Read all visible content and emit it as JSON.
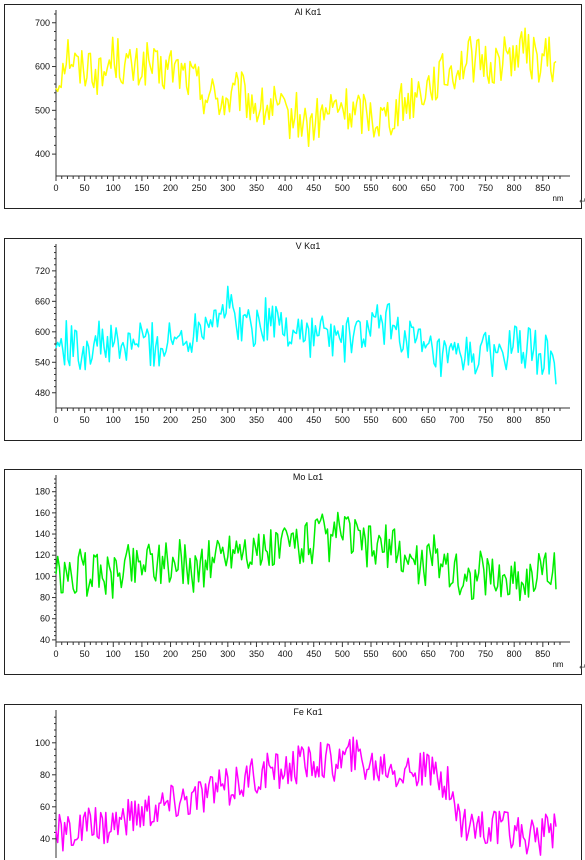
{
  "chart_data": [
    {
      "type": "line",
      "title": "Al Kα1",
      "xlabel": "nm",
      "color": "#ffff00",
      "xlim": [
        0,
        880
      ],
      "ylim": [
        350,
        720
      ],
      "xticks": [
        0,
        50,
        100,
        150,
        200,
        250,
        300,
        350,
        400,
        450,
        500,
        550,
        600,
        650,
        700,
        750,
        800,
        850
      ],
      "yticks": [
        400,
        500,
        600,
        700
      ],
      "x": [
        0,
        20,
        40,
        60,
        80,
        100,
        120,
        140,
        160,
        180,
        200,
        220,
        240,
        260,
        280,
        300,
        320,
        340,
        360,
        380,
        400,
        420,
        440,
        460,
        480,
        500,
        520,
        540,
        560,
        580,
        600,
        620,
        640,
        660,
        680,
        700,
        720,
        740,
        760,
        780,
        800,
        820,
        840,
        860,
        875
      ],
      "values": [
        560,
        640,
        590,
        610,
        570,
        630,
        600,
        590,
        610,
        580,
        600,
        585,
        570,
        540,
        530,
        520,
        540,
        520,
        500,
        510,
        480,
        490,
        460,
        480,
        500,
        510,
        490,
        500,
        480,
        490,
        510,
        530,
        550,
        570,
        580,
        600,
        620,
        610,
        600,
        620,
        630,
        640,
        610,
        620,
        580
      ]
    },
    {
      "type": "line",
      "title": "V Kα1",
      "xlabel": "",
      "color": "#00ffff",
      "xlim": [
        0,
        880
      ],
      "ylim": [
        450,
        765
      ],
      "xticks": [
        0,
        50,
        100,
        150,
        200,
        250,
        300,
        350,
        400,
        450,
        500,
        550,
        600,
        650,
        700,
        750,
        800,
        850
      ],
      "yticks": [
        480,
        540,
        600,
        660,
        720
      ],
      "x": [
        0,
        20,
        40,
        60,
        80,
        100,
        120,
        140,
        160,
        180,
        200,
        220,
        240,
        260,
        280,
        300,
        320,
        340,
        360,
        380,
        400,
        420,
        440,
        460,
        480,
        500,
        520,
        540,
        560,
        580,
        600,
        620,
        640,
        660,
        680,
        700,
        720,
        740,
        760,
        780,
        800,
        820,
        840,
        860,
        875
      ],
      "values": [
        570,
        580,
        560,
        575,
        580,
        570,
        565,
        585,
        580,
        570,
        580,
        590,
        600,
        630,
        640,
        650,
        620,
        610,
        620,
        630,
        600,
        610,
        590,
        600,
        590,
        580,
        590,
        600,
        610,
        620,
        600,
        590,
        560,
        550,
        540,
        545,
        550,
        560,
        555,
        560,
        570,
        565,
        560,
        550,
        500
      ]
    },
    {
      "type": "line",
      "title": "Mo Lα1",
      "xlabel": "nm",
      "color": "#00ee00",
      "xlim": [
        0,
        880
      ],
      "ylim": [
        38,
        192
      ],
      "xticks": [
        0,
        50,
        100,
        150,
        200,
        250,
        300,
        350,
        400,
        450,
        500,
        550,
        600,
        650,
        700,
        750,
        800,
        850
      ],
      "yticks": [
        40,
        60,
        80,
        100,
        120,
        140,
        160,
        180
      ],
      "x": [
        0,
        20,
        40,
        60,
        80,
        100,
        120,
        140,
        160,
        180,
        200,
        220,
        240,
        260,
        280,
        300,
        320,
        340,
        360,
        380,
        400,
        420,
        440,
        460,
        480,
        500,
        520,
        540,
        560,
        580,
        600,
        620,
        640,
        660,
        680,
        700,
        720,
        740,
        760,
        780,
        800,
        820,
        840,
        860,
        875
      ],
      "values": [
        100,
        95,
        105,
        100,
        110,
        95,
        115,
        110,
        120,
        115,
        110,
        115,
        105,
        110,
        120,
        125,
        130,
        125,
        120,
        125,
        130,
        135,
        130,
        140,
        130,
        145,
        135,
        130,
        125,
        130,
        120,
        115,
        110,
        120,
        115,
        100,
        95,
        105,
        100,
        95,
        100,
        95,
        105,
        100,
        110
      ]
    },
    {
      "type": "line",
      "title": "Fe Kα1",
      "xlabel": "",
      "color": "#ff00ff",
      "xlim": [
        0,
        880
      ],
      "ylim": [
        28,
        118
      ],
      "xticks": [],
      "yticks": [
        40,
        60,
        80,
        100
      ],
      "x": [
        0,
        20,
        40,
        60,
        80,
        100,
        120,
        140,
        160,
        180,
        200,
        220,
        240,
        260,
        280,
        300,
        320,
        340,
        360,
        380,
        400,
        420,
        440,
        460,
        480,
        500,
        520,
        540,
        560,
        580,
        600,
        620,
        640,
        660,
        680,
        700,
        720,
        740,
        760,
        780,
        800,
        820,
        840,
        860,
        875
      ],
      "values": [
        42,
        44,
        45,
        47,
        48,
        50,
        52,
        55,
        58,
        60,
        62,
        65,
        65,
        68,
        70,
        72,
        75,
        78,
        80,
        82,
        84,
        85,
        88,
        90,
        88,
        90,
        92,
        88,
        85,
        88,
        82,
        84,
        82,
        80,
        78,
        55,
        50,
        48,
        46,
        45,
        44,
        43,
        42,
        43,
        44
      ]
    }
  ]
}
